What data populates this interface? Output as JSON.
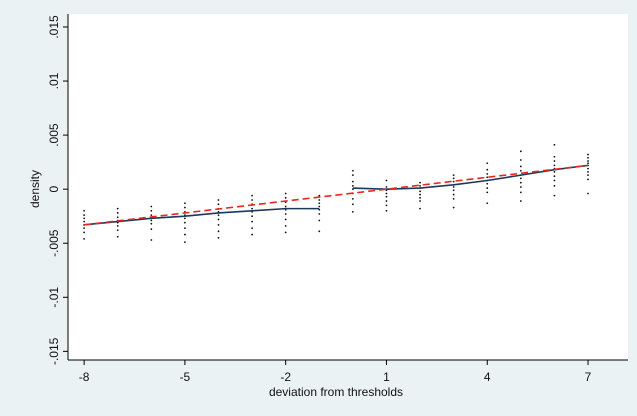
{
  "chart_data": {
    "type": "scatter",
    "xlabel": "deviation from thresholds",
    "ylabel": "density",
    "xlim": [
      -8.48,
      8.19
    ],
    "ylim": [
      -0.0158,
      0.0162
    ],
    "xticks": [
      -8,
      -5,
      -2,
      1,
      4,
      7
    ],
    "yticks": [
      {
        "value": -0.015,
        "label": "-.015"
      },
      {
        "value": -0.01,
        "label": "-.01"
      },
      {
        "value": -0.005,
        "label": "-.005"
      },
      {
        "value": 0,
        "label": "0"
      },
      {
        "value": 0.005,
        "label": ".005"
      },
      {
        "value": 0.01,
        "label": ".01"
      },
      {
        "value": 0.015,
        "label": ".015"
      }
    ],
    "points": {
      "color": "#111111",
      "x": [
        -8,
        -8,
        -8,
        -8,
        -8,
        -8,
        -8,
        -8,
        -7,
        -7,
        -7,
        -7,
        -7,
        -7,
        -7,
        -7,
        -6,
        -6,
        -6,
        -6,
        -6,
        -6,
        -6,
        -6,
        -5,
        -5,
        -5,
        -5,
        -5,
        -5,
        -5,
        -5,
        -5,
        -4,
        -4,
        -4,
        -4,
        -4,
        -4,
        -4,
        -4,
        -4,
        -3,
        -3,
        -3,
        -3,
        -3,
        -3,
        -3,
        -3,
        -3,
        -2,
        -2,
        -2,
        -2,
        -2,
        -2,
        -2,
        -2,
        -2,
        -1,
        -1,
        -1,
        -1,
        -1,
        -1,
        -1,
        -1,
        0,
        0,
        0,
        0,
        0,
        0,
        0,
        0,
        0,
        1,
        1,
        1,
        1,
        1,
        1,
        1,
        1,
        2,
        2,
        2,
        2,
        2,
        2,
        2,
        2,
        3,
        3,
        3,
        3,
        3,
        3,
        3,
        3,
        3,
        4,
        4,
        4,
        4,
        4,
        4,
        4,
        4,
        4,
        5,
        5,
        5,
        5,
        5,
        5,
        5,
        5,
        5,
        5,
        6,
        6,
        6,
        6,
        6,
        6,
        6,
        6,
        6,
        6,
        7,
        7,
        7,
        7,
        7,
        7,
        7,
        7,
        7,
        7
      ],
      "values": [
        -0.002,
        -0.0024,
        -0.0027,
        -0.003,
        -0.0033,
        -0.0036,
        -0.004,
        -0.0046,
        -0.0018,
        -0.0022,
        -0.0026,
        -0.0029,
        -0.0031,
        -0.0034,
        -0.0038,
        -0.0044,
        -0.0016,
        -0.002,
        -0.0024,
        -0.0027,
        -0.0029,
        -0.0032,
        -0.0037,
        -0.0047,
        -0.0013,
        -0.0017,
        -0.0021,
        -0.0024,
        -0.0027,
        -0.0031,
        -0.0036,
        -0.0042,
        -0.0049,
        -0.001,
        -0.0014,
        -0.0018,
        -0.0021,
        -0.0024,
        -0.0028,
        -0.0033,
        -0.0039,
        -0.0045,
        -0.0006,
        -0.001,
        -0.0014,
        -0.0018,
        -0.0021,
        -0.0025,
        -0.003,
        -0.0036,
        -0.0042,
        -0.0004,
        -0.0008,
        -0.0012,
        -0.0016,
        -0.0019,
        -0.0023,
        -0.0028,
        -0.0034,
        -0.004,
        -0.0006,
        -0.001,
        -0.0013,
        -0.0016,
        -0.0019,
        -0.0023,
        -0.0029,
        -0.0039,
        0.0017,
        0.0013,
        0.0007,
        0.0003,
        0.0,
        -0.0004,
        -0.0009,
        -0.0014,
        -0.0021,
        0.0008,
        0.0002,
        -0.0001,
        -0.0004,
        -0.0007,
        -0.0011,
        -0.0015,
        -0.002,
        0.0006,
        0.0003,
        0.0001,
        -0.0002,
        -0.0005,
        -0.0008,
        -0.0011,
        -0.0018,
        0.0013,
        0.001,
        0.0007,
        0.0004,
        0.0002,
        -0.0001,
        -0.0005,
        -0.0009,
        -0.0017,
        0.0024,
        0.0018,
        0.0014,
        0.0011,
        0.0008,
        0.0005,
        0.0001,
        -0.0003,
        -0.0013,
        0.0035,
        0.0027,
        0.0021,
        0.0017,
        0.0013,
        0.001,
        0.0006,
        0.0002,
        -0.0003,
        -0.0011,
        0.0041,
        0.003,
        0.0026,
        0.0022,
        0.0019,
        0.0016,
        0.0012,
        0.0008,
        0.0003,
        -0.0006,
        0.0032,
        0.0029,
        0.0026,
        0.0024,
        0.0022,
        0.0019,
        0.0016,
        0.0013,
        0.0009,
        -0.0004
      ]
    },
    "series": [
      {
        "color": "#1a3a5c",
        "dash": false,
        "x": [
          -8,
          -7,
          -6,
          -5,
          -4,
          -3,
          -2,
          -1
        ],
        "values": [
          -0.0033,
          -0.003,
          -0.0027,
          -0.0025,
          -0.0022,
          -0.002,
          -0.0018,
          -0.0018
        ]
      },
      {
        "color": "#1a3a5c",
        "dash": false,
        "x": [
          0,
          1,
          2,
          3,
          4,
          5,
          6,
          7
        ],
        "values": [
          0.0001,
          0.0,
          0.0001,
          0.0004,
          0.0008,
          0.0013,
          0.0018,
          0.0022
        ]
      },
      {
        "color": "#e8281e",
        "dash": true,
        "x": [
          -8,
          7
        ],
        "values": [
          -0.0033,
          0.0022
        ]
      }
    ]
  }
}
